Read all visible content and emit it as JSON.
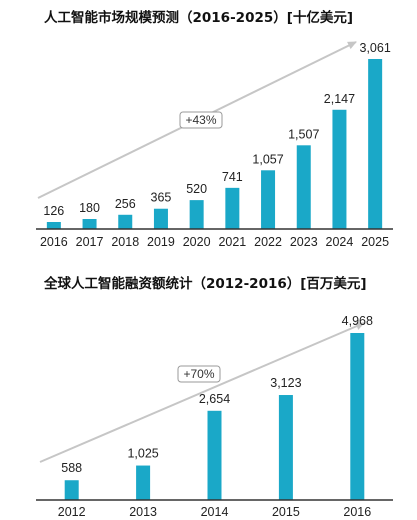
{
  "colors": {
    "bar": "#1aa8c8",
    "axis": "#333333",
    "arrow": "#c6c6c6"
  },
  "chart_data": [
    {
      "type": "bar",
      "title": "人工智能市场规模预测（2016-2025）[十亿美元]",
      "categories": [
        "2016",
        "2017",
        "2018",
        "2019",
        "2020",
        "2021",
        "2022",
        "2023",
        "2024",
        "2025"
      ],
      "values": [
        126,
        180,
        256,
        365,
        520,
        741,
        1057,
        1507,
        2147,
        3061
      ],
      "value_labels": [
        "126",
        "180",
        "256",
        "365",
        "520",
        "741",
        "1,057",
        "1,507",
        "2,147",
        "3,061"
      ],
      "growth_label": "+43%",
      "xlabel": "",
      "ylabel": "",
      "ylim": [
        0,
        3061
      ],
      "grid": false,
      "legend": "none"
    },
    {
      "type": "bar",
      "title": "全球人工智能融资额统计（2012-2016）[百万美元]",
      "categories": [
        "2012",
        "2013",
        "2014",
        "2015",
        "2016"
      ],
      "values": [
        588,
        1025,
        2654,
        3123,
        4968
      ],
      "value_labels": [
        "588",
        "1,025",
        "2,654",
        "3,123",
        "4,968"
      ],
      "growth_label": "+70%",
      "xlabel": "",
      "ylabel": "",
      "ylim": [
        0,
        4968
      ],
      "grid": false,
      "legend": "none"
    }
  ]
}
